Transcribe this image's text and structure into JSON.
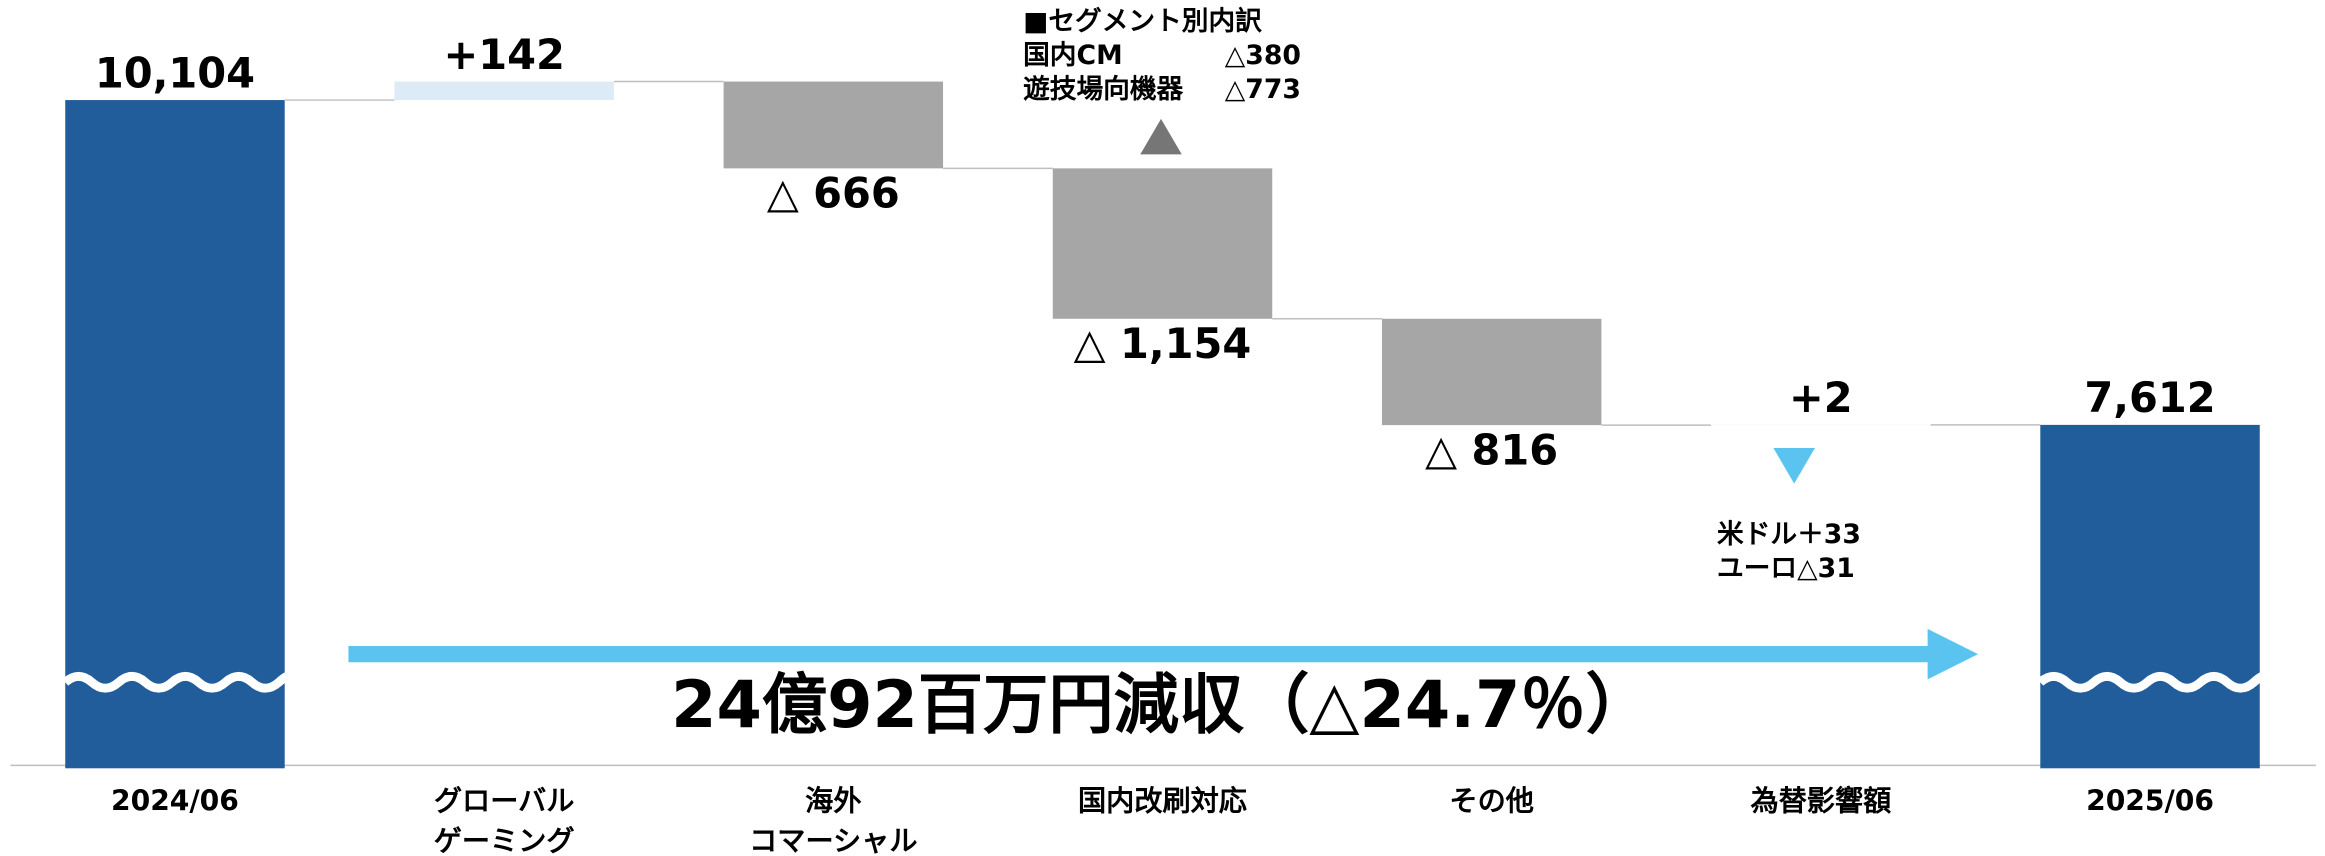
{
  "chart_data": {
    "type": "waterfall",
    "categories": [
      [
        "2024/06"
      ],
      [
        "グローバル",
        "ゲーミング"
      ],
      [
        "海外",
        "コマーシャル"
      ],
      [
        "国内改刷対応"
      ],
      [
        "その他"
      ],
      [
        "為替影響額"
      ],
      [
        "2025/06"
      ]
    ],
    "values": [
      10104,
      142,
      -666,
      -1154,
      -816,
      2,
      7612
    ],
    "value_labels": [
      "10,104",
      "+142",
      "△ 666",
      "△ 1,154",
      "△ 816",
      "+2",
      "7,612"
    ],
    "is_total": [
      true,
      false,
      false,
      false,
      false,
      false,
      true
    ],
    "colors": {
      "total": "#215d9a",
      "increase": "#ddebf7",
      "decrease": "#a6a6a6"
    },
    "ylim": [
      5000,
      10870
    ],
    "axis_break": true,
    "annotations": {
      "summary": "24億92百万円減収（△24.7％）",
      "segment_title": "■セグメント別内訳",
      "segment_rows": [
        [
          "国内CM",
          "△380"
        ],
        [
          "遊技場向機器",
          "△773"
        ]
      ],
      "fx_rows": [
        "米ドル＋33",
        "ユーロ△31"
      ]
    }
  }
}
